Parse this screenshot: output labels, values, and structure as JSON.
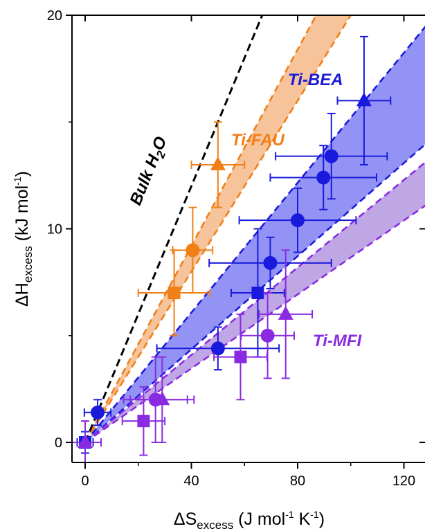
{
  "chart_data": {
    "type": "scatter",
    "xlabel": {
      "main": "ΔS",
      "sub": "excess",
      "rest1": " (J mol",
      "sup1": "-1",
      "rest2": " K",
      "sup2": "-1",
      "rest3": ")"
    },
    "ylabel": {
      "main": "ΔH",
      "sub": "excess",
      "rest1": " (kJ mol",
      "sup1": "-1",
      "rest2": ")"
    },
    "xlim": [
      -5,
      127
    ],
    "ylim": [
      -1,
      20
    ],
    "x_ticks": [
      0,
      40,
      80,
      120
    ],
    "y_ticks": [
      0,
      10,
      20
    ],
    "annotations": {
      "bulk": {
        "main": "Bulk H",
        "sub": "2",
        "end": "O",
        "color": "#000000"
      },
      "fau": {
        "text": "Ti-FAU",
        "color": "#f07f17"
      },
      "bea": {
        "text": "Ti-BEA",
        "color": "#1a1adc"
      },
      "mfi": {
        "text": "Ti-MFI",
        "color": "#8a2be2"
      }
    },
    "reference_lines": [
      {
        "name": "Bulk H2O",
        "color": "#000000",
        "slope": 0.3
      }
    ],
    "bands": [
      {
        "name": "Ti-FAU",
        "color": "#f07f17",
        "fill": "#f5b98a",
        "slope_low": 0.2,
        "slope_high": 0.23
      },
      {
        "name": "Ti-BEA",
        "color": "#1a1adc",
        "fill": "#8080f5",
        "slope_low": 0.109,
        "slope_high": 0.152
      },
      {
        "name": "Ti-MFI",
        "color": "#8a2be2",
        "fill": "#b496e0",
        "slope_low": 0.0866,
        "slope_high": 0.1024
      }
    ],
    "series": [
      {
        "name": "Ti-FAU",
        "color": "#f07f17",
        "points": [
          {
            "x": 0,
            "y": 0,
            "xerr": 3,
            "yerr": 1,
            "marker": "square"
          },
          {
            "x": 33.5,
            "y": 7,
            "xerr": 13.5,
            "yerr": 2,
            "marker": "square"
          },
          {
            "x": 40.5,
            "y": 9,
            "xerr": 7.5,
            "yerr": 2,
            "marker": "circle"
          },
          {
            "x": 50,
            "y": 13,
            "xerr": 10,
            "yerr": 2,
            "marker": "triangle"
          }
        ]
      },
      {
        "name": "Ti-BEA",
        "color": "#1a1adc",
        "points": [
          {
            "x": 0,
            "y": 0,
            "xerr": 3,
            "yerr": 0.5,
            "marker": "square"
          },
          {
            "x": 4.7,
            "y": 1.4,
            "xerr": 5,
            "yerr": 0.6,
            "marker": "circle"
          },
          {
            "x": 50,
            "y": 4.4,
            "xerr": 23,
            "yerr": 1,
            "marker": "circle"
          },
          {
            "x": 65,
            "y": 7,
            "xerr": 10,
            "yerr": 3,
            "marker": "square"
          },
          {
            "x": 69.7,
            "y": 8.4,
            "xerr": 23,
            "yerr": 1.2,
            "marker": "circle"
          },
          {
            "x": 80,
            "y": 10.4,
            "xerr": 22,
            "yerr": 1.5,
            "marker": "circle"
          },
          {
            "x": 89.7,
            "y": 12.4,
            "xerr": 20,
            "yerr": 1.5,
            "marker": "circle"
          },
          {
            "x": 92.7,
            "y": 13.4,
            "xerr": 21,
            "yerr": 2,
            "marker": "circle"
          },
          {
            "x": 105,
            "y": 16,
            "xerr": 10,
            "yerr": 3,
            "marker": "triangle"
          }
        ]
      },
      {
        "name": "Ti-MFI",
        "color": "#8a2be2",
        "points": [
          {
            "x": 0,
            "y": 0,
            "xerr": 6,
            "yerr": 1,
            "marker": "triangle"
          },
          {
            "x": 22,
            "y": 1,
            "xerr": 8,
            "yerr": 1.6,
            "marker": "square"
          },
          {
            "x": 26.5,
            "y": 2,
            "xerr": 12,
            "yerr": 2,
            "marker": "circle"
          },
          {
            "x": 29,
            "y": 2,
            "xerr": 12,
            "yerr": 2,
            "marker": "triangle"
          },
          {
            "x": 58.5,
            "y": 4,
            "xerr": 10,
            "yerr": 2,
            "marker": "square"
          },
          {
            "x": 68.7,
            "y": 5,
            "xerr": 10,
            "yerr": 2,
            "marker": "circle"
          },
          {
            "x": 75.5,
            "y": 6,
            "xerr": 10,
            "yerr": 3,
            "marker": "triangle"
          }
        ]
      }
    ]
  }
}
